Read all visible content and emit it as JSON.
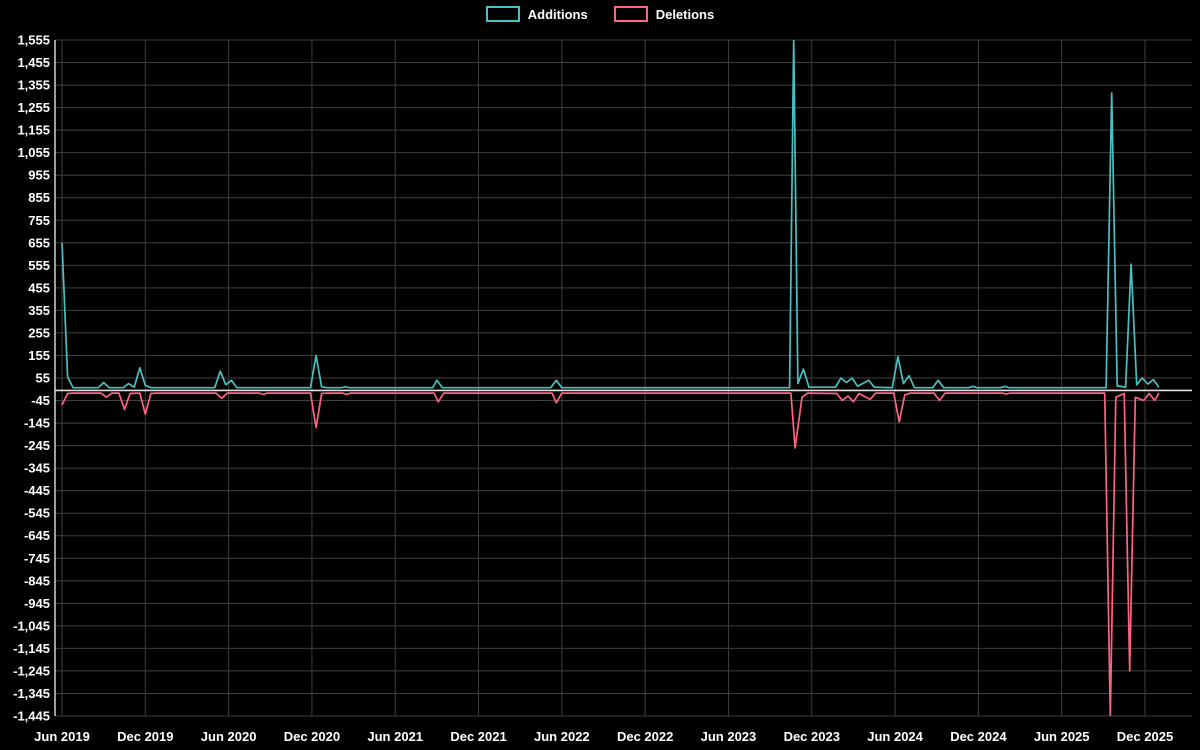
{
  "chart_data": {
    "type": "line",
    "title": "",
    "legend_position": "top",
    "background": "#000000",
    "grid": true,
    "grid_color": "#3f3f3f",
    "zero_line_color": "#e0e0e0",
    "axis_line_color": "#e0e0e0",
    "text_color": "#ffffff",
    "x_axis": {
      "type": "time",
      "tick_labels": [
        "Jun 2019",
        "Dec 2019",
        "Jun 2020",
        "Dec 2020",
        "Jun 2021",
        "Dec 2021",
        "Jun 2022",
        "Dec 2022",
        "Jun 2023",
        "Dec 2023",
        "Jun 2024",
        "Dec 2024",
        "Jun 2025",
        "Dec 2025"
      ],
      "tick_months": [
        0,
        6,
        12,
        18,
        24,
        30,
        36,
        42,
        48,
        54,
        60,
        66,
        72,
        78
      ]
    },
    "y_axis": {
      "min": -1445,
      "max": 1555,
      "tick_step": 100
    },
    "series": [
      {
        "name": "Additions",
        "color": "#4bc0c0",
        "points": [
          [
            0,
            655
          ],
          [
            0.4,
            60
          ],
          [
            0.8,
            12
          ],
          [
            2.6,
            12
          ],
          [
            3,
            35
          ],
          [
            3.4,
            12
          ],
          [
            4.4,
            12
          ],
          [
            4.8,
            30
          ],
          [
            5.2,
            14
          ],
          [
            5.6,
            100
          ],
          [
            6,
            22
          ],
          [
            6.4,
            12
          ],
          [
            11,
            12
          ],
          [
            11.4,
            85
          ],
          [
            11.8,
            25
          ],
          [
            12.2,
            45
          ],
          [
            12.6,
            12
          ],
          [
            17.9,
            12
          ],
          [
            18.3,
            155
          ],
          [
            18.7,
            16
          ],
          [
            19.1,
            12
          ],
          [
            20.1,
            12
          ],
          [
            20.4,
            16
          ],
          [
            20.7,
            12
          ],
          [
            26.7,
            12
          ],
          [
            27,
            45
          ],
          [
            27.4,
            12
          ],
          [
            35.2,
            12
          ],
          [
            35.6,
            45
          ],
          [
            36,
            12
          ],
          [
            52.4,
            12
          ],
          [
            52.7,
            1555
          ],
          [
            53,
            30
          ],
          [
            53.4,
            95
          ],
          [
            53.8,
            14
          ],
          [
            55.7,
            14
          ],
          [
            56.1,
            55
          ],
          [
            56.5,
            35
          ],
          [
            56.9,
            55
          ],
          [
            57.3,
            18
          ],
          [
            58.1,
            45
          ],
          [
            58.5,
            14
          ],
          [
            59.8,
            12
          ],
          [
            60.2,
            150
          ],
          [
            60.6,
            30
          ],
          [
            61,
            65
          ],
          [
            61.4,
            12
          ],
          [
            62.7,
            12
          ],
          [
            63.1,
            45
          ],
          [
            63.5,
            12
          ],
          [
            65.3,
            12
          ],
          [
            65.6,
            18
          ],
          [
            65.9,
            12
          ],
          [
            67.6,
            12
          ],
          [
            67.9,
            18
          ],
          [
            68.2,
            12
          ],
          [
            75.2,
            12
          ],
          [
            75.6,
            1320
          ],
          [
            76,
            20
          ],
          [
            76.6,
            14
          ],
          [
            77,
            560
          ],
          [
            77.4,
            25
          ],
          [
            77.8,
            55
          ],
          [
            78.2,
            28
          ],
          [
            78.6,
            48
          ],
          [
            79,
            14
          ]
        ]
      },
      {
        "name": "Deletions",
        "color": "#ff6384",
        "points": [
          [
            0,
            -65
          ],
          [
            0.4,
            -14
          ],
          [
            0.8,
            -12
          ],
          [
            2.8,
            -12
          ],
          [
            3.2,
            -30
          ],
          [
            3.6,
            -12
          ],
          [
            4.1,
            -12
          ],
          [
            4.5,
            -85
          ],
          [
            4.9,
            -14
          ],
          [
            5.6,
            -12
          ],
          [
            6,
            -105
          ],
          [
            6.4,
            -14
          ],
          [
            6.8,
            -12
          ],
          [
            11.1,
            -12
          ],
          [
            11.5,
            -35
          ],
          [
            11.9,
            -12
          ],
          [
            14.2,
            -12
          ],
          [
            14.5,
            -18
          ],
          [
            14.8,
            -12
          ],
          [
            17.9,
            -12
          ],
          [
            18.3,
            -165
          ],
          [
            18.7,
            -14
          ],
          [
            19.1,
            -12
          ],
          [
            20.2,
            -12
          ],
          [
            20.5,
            -18
          ],
          [
            20.8,
            -12
          ],
          [
            26.8,
            -12
          ],
          [
            27.1,
            -50
          ],
          [
            27.5,
            -12
          ],
          [
            35.3,
            -12
          ],
          [
            35.6,
            -55
          ],
          [
            36,
            -12
          ],
          [
            52.5,
            -12
          ],
          [
            52.8,
            -255
          ],
          [
            53.3,
            -30
          ],
          [
            53.7,
            -12
          ],
          [
            55.8,
            -14
          ],
          [
            56.2,
            -45
          ],
          [
            56.6,
            -25
          ],
          [
            57,
            -50
          ],
          [
            57.4,
            -14
          ],
          [
            58.2,
            -40
          ],
          [
            58.6,
            -12
          ],
          [
            59.9,
            -12
          ],
          [
            60.3,
            -140
          ],
          [
            60.7,
            -20
          ],
          [
            61.1,
            -12
          ],
          [
            62.8,
            -12
          ],
          [
            63.2,
            -45
          ],
          [
            63.6,
            -12
          ],
          [
            67.7,
            -12
          ],
          [
            68,
            -16
          ],
          [
            68.3,
            -12
          ],
          [
            75.1,
            -12
          ],
          [
            75.5,
            -1445
          ],
          [
            75.9,
            -30
          ],
          [
            76.5,
            -14
          ],
          [
            76.9,
            -1245
          ],
          [
            77.3,
            -30
          ],
          [
            77.9,
            -45
          ],
          [
            78.3,
            -14
          ],
          [
            78.7,
            -45
          ],
          [
            79,
            -12
          ]
        ]
      }
    ]
  }
}
